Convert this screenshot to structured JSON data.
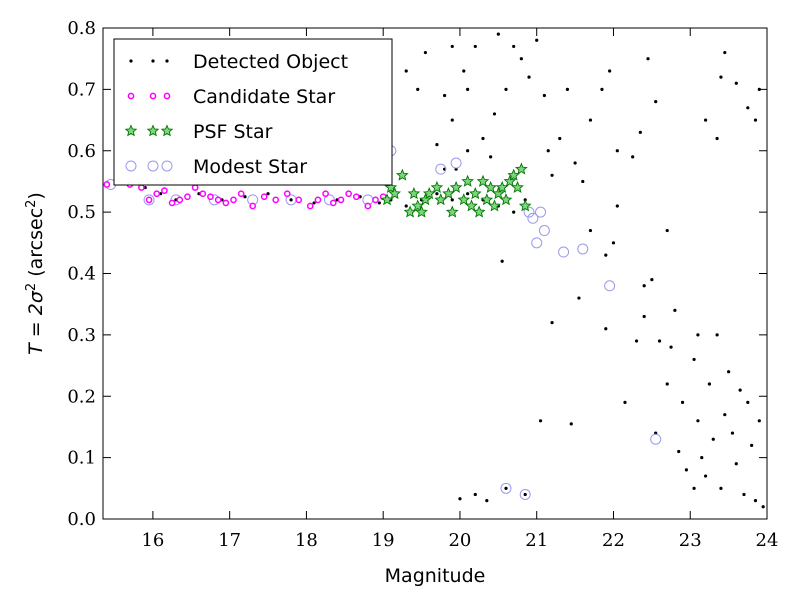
{
  "chart_data": {
    "type": "scatter",
    "xlabel": "Magnitude",
    "ylabel_main": "T = 2σ",
    "ylabel_sup": "2",
    "ylabel_paren_open": " (arcsec",
    "ylabel_paren_sup": "2",
    "ylabel_paren_close": ")",
    "xlim": [
      15.35,
      24.0
    ],
    "ylim": [
      0.0,
      0.8
    ],
    "xticks": [
      16,
      17,
      18,
      19,
      20,
      21,
      22,
      23,
      24
    ],
    "xtick_labels": [
      "16",
      "17",
      "18",
      "19",
      "20",
      "21",
      "22",
      "23",
      "24"
    ],
    "yticks": [
      0.0,
      0.1,
      0.2,
      0.3,
      0.4,
      0.5,
      0.6,
      0.7,
      0.8
    ],
    "ytick_labels": [
      "0.0",
      "0.1",
      "0.2",
      "0.3",
      "0.4",
      "0.5",
      "0.6",
      "0.7",
      "0.8"
    ],
    "grid": false,
    "legend_position": "top-left",
    "legend": [
      {
        "label": "Detected Object",
        "marker": "dot",
        "color": "#000000"
      },
      {
        "label": "Candidate Star",
        "marker": "ring",
        "color": "#ff00ff"
      },
      {
        "label": "PSF Star",
        "marker": "star",
        "color": "#00aa00"
      },
      {
        "label": "Modest Star",
        "marker": "open-circle",
        "color": "#9999ee"
      }
    ],
    "series": [
      {
        "name": "Detected Object",
        "points": [
          [
            15.4,
            0.545
          ],
          [
            15.6,
            0.55
          ],
          [
            15.9,
            0.54
          ],
          [
            16.1,
            0.53
          ],
          [
            16.3,
            0.52
          ],
          [
            16.6,
            0.53
          ],
          [
            16.9,
            0.52
          ],
          [
            17.2,
            0.525
          ],
          [
            17.5,
            0.53
          ],
          [
            17.8,
            0.52
          ],
          [
            18.1,
            0.515
          ],
          [
            18.4,
            0.52
          ],
          [
            18.7,
            0.525
          ],
          [
            18.95,
            0.515
          ],
          [
            19.1,
            0.52
          ],
          [
            19.3,
            0.51
          ],
          [
            19.5,
            0.52
          ],
          [
            19.7,
            0.53
          ],
          [
            19.9,
            0.52
          ],
          [
            20.1,
            0.53
          ],
          [
            20.3,
            0.52
          ],
          [
            20.5,
            0.51
          ],
          [
            20.7,
            0.5
          ],
          [
            20.85,
            0.52
          ],
          [
            19.1,
            0.6
          ],
          [
            19.8,
            0.57
          ],
          [
            19.95,
            0.57
          ],
          [
            20.55,
            0.42
          ],
          [
            20.0,
            0.033
          ],
          [
            20.35,
            0.03
          ],
          [
            20.6,
            0.05
          ],
          [
            20.85,
            0.04
          ],
          [
            20.2,
            0.04
          ],
          [
            20.4,
            0.59
          ],
          [
            20.3,
            0.62
          ],
          [
            20.1,
            0.6
          ],
          [
            20.05,
            0.73
          ],
          [
            20.2,
            0.77
          ],
          [
            20.5,
            0.79
          ],
          [
            20.45,
            0.66
          ],
          [
            19.8,
            0.69
          ],
          [
            19.9,
            0.77
          ],
          [
            19.3,
            0.73
          ],
          [
            19.45,
            0.7
          ],
          [
            19.55,
            0.76
          ],
          [
            19.7,
            0.61
          ],
          [
            19.9,
            0.65
          ],
          [
            20.1,
            0.7
          ],
          [
            20.6,
            0.7
          ],
          [
            20.7,
            0.77
          ],
          [
            20.8,
            0.75
          ],
          [
            20.9,
            0.72
          ],
          [
            21.0,
            0.78
          ],
          [
            21.1,
            0.69
          ],
          [
            21.15,
            0.6
          ],
          [
            21.2,
            0.56
          ],
          [
            21.3,
            0.62
          ],
          [
            21.4,
            0.7
          ],
          [
            21.5,
            0.58
          ],
          [
            21.6,
            0.55
          ],
          [
            21.7,
            0.65
          ],
          [
            21.85,
            0.7
          ],
          [
            21.95,
            0.73
          ],
          [
            22.05,
            0.6
          ],
          [
            21.05,
            0.16
          ],
          [
            21.45,
            0.155
          ],
          [
            21.2,
            0.32
          ],
          [
            21.55,
            0.36
          ],
          [
            21.7,
            0.47
          ],
          [
            21.9,
            0.43
          ],
          [
            21.9,
            0.31
          ],
          [
            22.0,
            0.45
          ],
          [
            22.05,
            0.51
          ],
          [
            22.15,
            0.19
          ],
          [
            22.3,
            0.29
          ],
          [
            22.4,
            0.38
          ],
          [
            22.5,
            0.39
          ],
          [
            22.6,
            0.29
          ],
          [
            22.7,
            0.47
          ],
          [
            22.8,
            0.34
          ],
          [
            22.9,
            0.19
          ],
          [
            22.95,
            0.08
          ],
          [
            23.05,
            0.05
          ],
          [
            23.1,
            0.16
          ],
          [
            23.15,
            0.1
          ],
          [
            23.2,
            0.07
          ],
          [
            23.25,
            0.22
          ],
          [
            23.3,
            0.13
          ],
          [
            23.4,
            0.05
          ],
          [
            23.45,
            0.17
          ],
          [
            23.5,
            0.24
          ],
          [
            23.55,
            0.14
          ],
          [
            23.6,
            0.09
          ],
          [
            23.65,
            0.21
          ],
          [
            23.7,
            0.04
          ],
          [
            23.75,
            0.19
          ],
          [
            23.8,
            0.12
          ],
          [
            23.85,
            0.03
          ],
          [
            23.9,
            0.16
          ],
          [
            23.95,
            0.02
          ],
          [
            23.85,
            0.65
          ],
          [
            23.9,
            0.7
          ],
          [
            23.75,
            0.67
          ],
          [
            23.6,
            0.71
          ],
          [
            23.45,
            0.76
          ],
          [
            23.35,
            0.62
          ],
          [
            23.4,
            0.72
          ],
          [
            23.2,
            0.65
          ],
          [
            22.35,
            0.63
          ],
          [
            22.45,
            0.75
          ],
          [
            22.55,
            0.68
          ],
          [
            22.25,
            0.59
          ],
          [
            22.75,
            0.28
          ],
          [
            22.7,
            0.22
          ],
          [
            22.55,
            0.14
          ],
          [
            22.85,
            0.11
          ],
          [
            22.4,
            0.33
          ],
          [
            23.05,
            0.26
          ],
          [
            23.1,
            0.3
          ],
          [
            23.35,
            0.3
          ]
        ]
      },
      {
        "name": "Candidate Star",
        "points": [
          [
            15.4,
            0.545
          ],
          [
            15.55,
            0.55
          ],
          [
            15.7,
            0.545
          ],
          [
            15.85,
            0.54
          ],
          [
            15.95,
            0.52
          ],
          [
            16.05,
            0.53
          ],
          [
            16.15,
            0.535
          ],
          [
            16.25,
            0.515
          ],
          [
            16.35,
            0.52
          ],
          [
            16.45,
            0.525
          ],
          [
            16.55,
            0.54
          ],
          [
            16.65,
            0.53
          ],
          [
            16.75,
            0.525
          ],
          [
            16.85,
            0.52
          ],
          [
            16.95,
            0.515
          ],
          [
            17.05,
            0.52
          ],
          [
            17.15,
            0.53
          ],
          [
            17.3,
            0.51
          ],
          [
            17.45,
            0.525
          ],
          [
            17.6,
            0.52
          ],
          [
            17.75,
            0.53
          ],
          [
            17.9,
            0.52
          ],
          [
            18.05,
            0.51
          ],
          [
            18.15,
            0.52
          ],
          [
            18.25,
            0.53
          ],
          [
            18.35,
            0.515
          ],
          [
            18.45,
            0.52
          ],
          [
            18.55,
            0.53
          ],
          [
            18.65,
            0.525
          ],
          [
            18.8,
            0.51
          ],
          [
            18.9,
            0.52
          ],
          [
            19.0,
            0.525
          ]
        ]
      },
      {
        "name": "PSF Star",
        "points": [
          [
            19.05,
            0.52
          ],
          [
            19.1,
            0.54
          ],
          [
            19.15,
            0.53
          ],
          [
            19.25,
            0.56
          ],
          [
            19.35,
            0.5
          ],
          [
            19.45,
            0.51
          ],
          [
            19.55,
            0.52
          ],
          [
            19.6,
            0.53
          ],
          [
            19.7,
            0.54
          ],
          [
            19.75,
            0.52
          ],
          [
            19.85,
            0.53
          ],
          [
            19.95,
            0.54
          ],
          [
            20.05,
            0.52
          ],
          [
            20.1,
            0.55
          ],
          [
            20.2,
            0.53
          ],
          [
            20.25,
            0.5
          ],
          [
            20.3,
            0.55
          ],
          [
            20.35,
            0.52
          ],
          [
            20.45,
            0.51
          ],
          [
            20.5,
            0.53
          ],
          [
            20.55,
            0.54
          ],
          [
            20.6,
            0.52
          ],
          [
            20.65,
            0.55
          ],
          [
            20.7,
            0.56
          ],
          [
            20.75,
            0.54
          ],
          [
            20.8,
            0.57
          ],
          [
            20.85,
            0.51
          ],
          [
            19.4,
            0.53
          ],
          [
            19.5,
            0.5
          ],
          [
            20.15,
            0.51
          ],
          [
            20.4,
            0.54
          ],
          [
            19.9,
            0.5
          ]
        ]
      },
      {
        "name": "Modest Star",
        "points": [
          [
            15.45,
            0.545
          ],
          [
            15.95,
            0.52
          ],
          [
            16.3,
            0.52
          ],
          [
            16.8,
            0.52
          ],
          [
            17.3,
            0.52
          ],
          [
            17.8,
            0.52
          ],
          [
            18.3,
            0.52
          ],
          [
            18.8,
            0.52
          ],
          [
            19.1,
            0.6
          ],
          [
            19.75,
            0.57
          ],
          [
            19.95,
            0.58
          ],
          [
            20.9,
            0.5
          ],
          [
            21.0,
            0.45
          ],
          [
            21.1,
            0.47
          ],
          [
            21.35,
            0.435
          ],
          [
            21.6,
            0.44
          ],
          [
            21.95,
            0.38
          ],
          [
            22.55,
            0.13
          ],
          [
            20.6,
            0.05
          ],
          [
            20.85,
            0.04
          ],
          [
            21.05,
            0.5
          ],
          [
            20.95,
            0.49
          ]
        ]
      }
    ]
  }
}
